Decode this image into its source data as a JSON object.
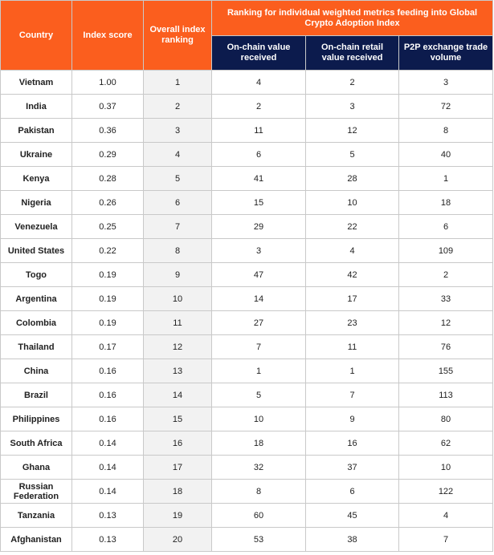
{
  "header": {
    "country": "Country",
    "index_score": "Index score",
    "overall_ranking": "Overall index ranking",
    "group": "Ranking for individual weighted metrics feeding into Global Crypto Adoption Index",
    "onchain_value": "On-chain value received",
    "onchain_retail": "On-chain retail value received",
    "p2p": "P2P exchange trade volume"
  },
  "rows": [
    {
      "country": "Vietnam",
      "score": "1.00",
      "rank": "1",
      "onchain": "4",
      "retail": "2",
      "p2p": "3"
    },
    {
      "country": "India",
      "score": "0.37",
      "rank": "2",
      "onchain": "2",
      "retail": "3",
      "p2p": "72"
    },
    {
      "country": "Pakistan",
      "score": "0.36",
      "rank": "3",
      "onchain": "11",
      "retail": "12",
      "p2p": "8"
    },
    {
      "country": "Ukraine",
      "score": "0.29",
      "rank": "4",
      "onchain": "6",
      "retail": "5",
      "p2p": "40"
    },
    {
      "country": "Kenya",
      "score": "0.28",
      "rank": "5",
      "onchain": "41",
      "retail": "28",
      "p2p": "1"
    },
    {
      "country": "Nigeria",
      "score": "0.26",
      "rank": "6",
      "onchain": "15",
      "retail": "10",
      "p2p": "18"
    },
    {
      "country": "Venezuela",
      "score": "0.25",
      "rank": "7",
      "onchain": "29",
      "retail": "22",
      "p2p": "6"
    },
    {
      "country": "United States",
      "score": "0.22",
      "rank": "8",
      "onchain": "3",
      "retail": "4",
      "p2p": "109"
    },
    {
      "country": "Togo",
      "score": "0.19",
      "rank": "9",
      "onchain": "47",
      "retail": "42",
      "p2p": "2"
    },
    {
      "country": "Argentina",
      "score": "0.19",
      "rank": "10",
      "onchain": "14",
      "retail": "17",
      "p2p": "33"
    },
    {
      "country": "Colombia",
      "score": "0.19",
      "rank": "11",
      "onchain": "27",
      "retail": "23",
      "p2p": "12"
    },
    {
      "country": "Thailand",
      "score": "0.17",
      "rank": "12",
      "onchain": "7",
      "retail": "11",
      "p2p": "76"
    },
    {
      "country": "China",
      "score": "0.16",
      "rank": "13",
      "onchain": "1",
      "retail": "1",
      "p2p": "155"
    },
    {
      "country": "Brazil",
      "score": "0.16",
      "rank": "14",
      "onchain": "5",
      "retail": "7",
      "p2p": "113"
    },
    {
      "country": "Philippines",
      "score": "0.16",
      "rank": "15",
      "onchain": "10",
      "retail": "9",
      "p2p": "80"
    },
    {
      "country": "South Africa",
      "score": "0.14",
      "rank": "16",
      "onchain": "18",
      "retail": "16",
      "p2p": "62"
    },
    {
      "country": "Ghana",
      "score": "0.14",
      "rank": "17",
      "onchain": "32",
      "retail": "37",
      "p2p": "10"
    },
    {
      "country": "Russian Federation",
      "score": "0.14",
      "rank": "18",
      "onchain": "8",
      "retail": "6",
      "p2p": "122"
    },
    {
      "country": "Tanzania",
      "score": "0.13",
      "rank": "19",
      "onchain": "60",
      "retail": "45",
      "p2p": "4"
    },
    {
      "country": "Afghanistan",
      "score": "0.13",
      "rank": "20",
      "onchain": "53",
      "retail": "38",
      "p2p": "7"
    }
  ]
}
